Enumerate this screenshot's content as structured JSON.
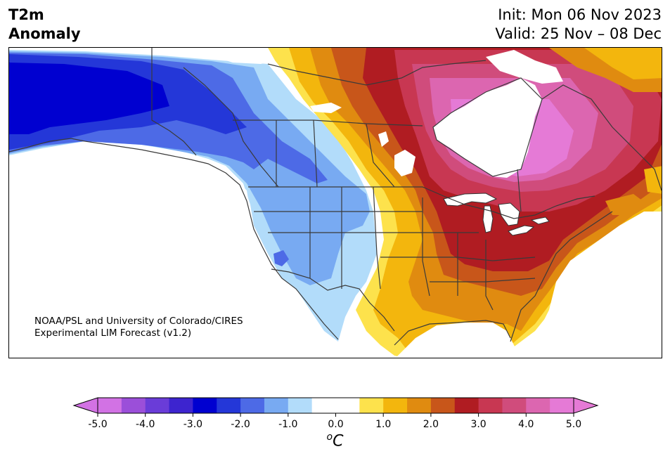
{
  "header": {
    "title_line1": "T2m",
    "title_line2": "Anomaly",
    "init_label": "Init: Mon 06 Nov 2023",
    "valid_label": "Valid: 25 Nov – 08 Dec"
  },
  "credit": {
    "line1": "NOAA/PSL and University of Colorado/CIRES",
    "line2": "Experimental LIM Forecast (v1.2)"
  },
  "colorbar": {
    "units_base": "C",
    "units_sup": "o",
    "tick_labels": [
      "-5.0",
      "-4.0",
      "-3.0",
      "-2.0",
      "-1.0",
      "0.0",
      "1.0",
      "2.0",
      "3.0",
      "4.0",
      "5.0"
    ],
    "colors": [
      "#d272e4",
      "#9b4fd9",
      "#6a3cd8",
      "#3d24cf",
      "#0000d0",
      "#2437d8",
      "#4d6ae6",
      "#78aaf2",
      "#b2dcfa",
      "#ffffff",
      "#ffffff",
      "#fde24c",
      "#f3b60d",
      "#e08b10",
      "#c8561a",
      "#b01c22",
      "#c83752",
      "#d04c7c",
      "#dc66b0",
      "#e57ad6"
    ],
    "under_color": "#d272e4",
    "over_color": "#e57ad6"
  },
  "map": {
    "region": "North America",
    "field": "2 m temperature anomaly",
    "cold_anomaly_region": "Alaska, western Canada, western US",
    "warm_anomaly_region": "eastern Canada, Great Lakes, eastern US"
  }
}
